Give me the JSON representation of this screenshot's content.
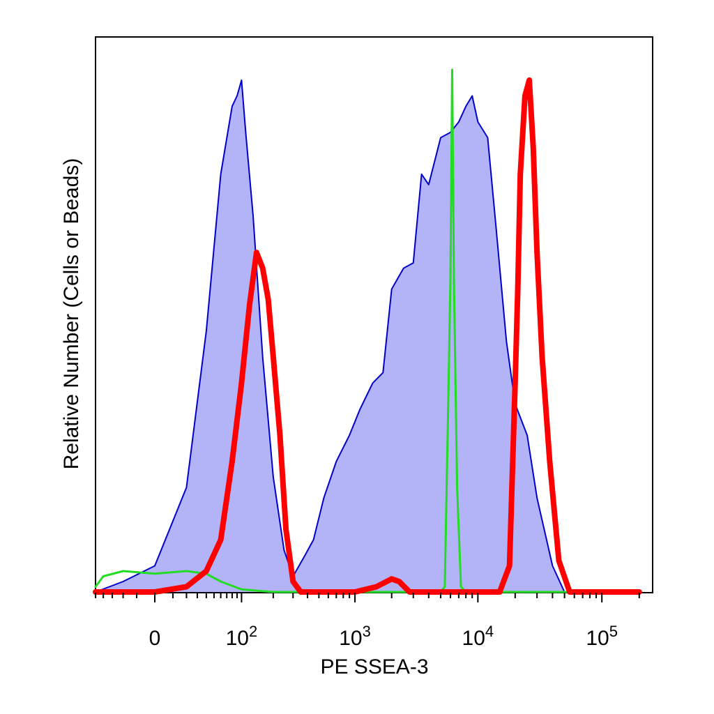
{
  "chart_data": {
    "type": "area",
    "xlabel": "PE SSEA-3",
    "ylabel": "Relative Number (Cells or Beads)",
    "x_scale": "biexponential",
    "x_tick_labels": [
      {
        "value": 0,
        "base": "0",
        "exp": ""
      },
      {
        "value": 100,
        "base": "10",
        "exp": "2"
      },
      {
        "value": 1000,
        "base": "10",
        "exp": "3"
      },
      {
        "value": 10000,
        "base": "10",
        "exp": "4"
      },
      {
        "value": 100000,
        "base": "10",
        "exp": "5"
      }
    ],
    "grid": false,
    "legend": "none",
    "series": [
      {
        "color": "#0000cc",
        "fill": "#b3b3f7",
        "style": "filled",
        "x": [
          -60,
          -20,
          0,
          20,
          40,
          60,
          80,
          90,
          100,
          110,
          130,
          160,
          200,
          250,
          300,
          380,
          450,
          550,
          700,
          900,
          1100,
          1400,
          1700,
          2000,
          2500,
          3000,
          3500,
          4000,
          5000,
          6000,
          7000,
          8000,
          9000,
          10000,
          12000,
          14000,
          17000,
          20000,
          25000,
          30000,
          40000,
          50000
        ],
        "y": [
          0.0,
          0.02,
          0.05,
          0.2,
          0.5,
          0.8,
          0.93,
          0.95,
          0.98,
          0.88,
          0.72,
          0.45,
          0.22,
          0.08,
          0.03,
          0.07,
          0.1,
          0.18,
          0.25,
          0.3,
          0.35,
          0.4,
          0.42,
          0.58,
          0.62,
          0.63,
          0.8,
          0.78,
          0.87,
          0.88,
          0.9,
          0.93,
          0.95,
          0.9,
          0.87,
          0.7,
          0.48,
          0.36,
          0.3,
          0.18,
          0.05,
          0.0
        ]
      },
      {
        "color": "#22dd22",
        "style": "line",
        "x": [
          -60,
          -40,
          -20,
          0,
          20,
          40,
          60,
          100,
          200,
          400,
          1000,
          3000,
          5000,
          5400,
          5800,
          6000,
          6200,
          6400,
          6800,
          7300,
          8000,
          100000
        ],
        "y": [
          0.01,
          0.03,
          0.04,
          0.035,
          0.04,
          0.035,
          0.02,
          0.005,
          0.0,
          0.0,
          0.0,
          0.0,
          0.0,
          0.01,
          0.4,
          0.6,
          1.0,
          0.6,
          0.2,
          0.01,
          0.0,
          0.0
        ]
      },
      {
        "color": "#ff0000",
        "style": "thick-line",
        "x": [
          -60,
          0,
          20,
          40,
          60,
          80,
          100,
          120,
          140,
          160,
          180,
          200,
          230,
          260,
          300,
          350,
          500,
          1000,
          1500,
          2000,
          2300,
          2800,
          4000,
          10000,
          15000,
          18000,
          20000,
          21000,
          22000,
          24000,
          26000,
          28000,
          30000,
          33000,
          38000,
          45000,
          55000,
          70000,
          200000
        ],
        "y": [
          0.0,
          0.0,
          0.01,
          0.04,
          0.1,
          0.25,
          0.4,
          0.55,
          0.65,
          0.62,
          0.56,
          0.45,
          0.3,
          0.12,
          0.02,
          0.0,
          0.0,
          0.0,
          0.01,
          0.025,
          0.02,
          0.0,
          0.0,
          0.0,
          0.0,
          0.05,
          0.4,
          0.58,
          0.8,
          0.95,
          0.98,
          0.85,
          0.65,
          0.45,
          0.25,
          0.06,
          0.0,
          0.0,
          0.0
        ]
      }
    ]
  }
}
